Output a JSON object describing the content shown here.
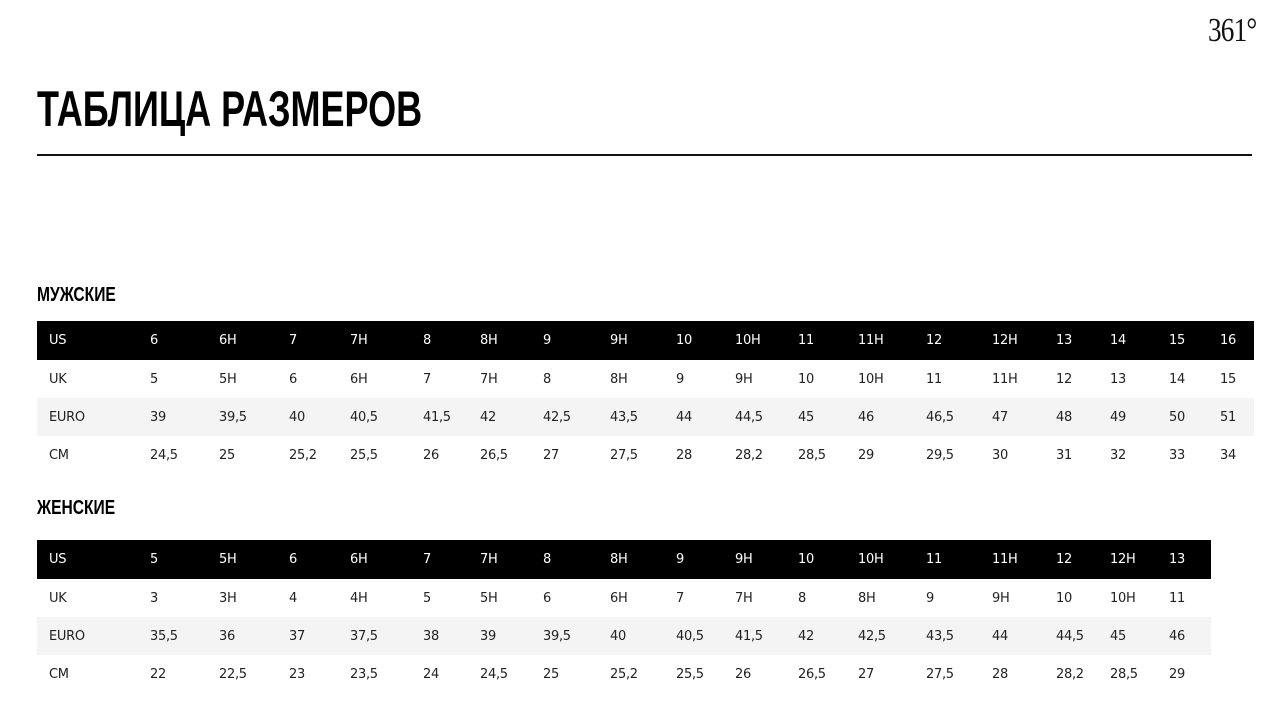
{
  "brand": {
    "logo_text": "361°"
  },
  "page_title": "ТАБЛИЦА РАЗМЕРОВ",
  "men": {
    "title": "МУЖСКИЕ",
    "rows": [
      [
        "US",
        "6",
        "6H",
        "7",
        "7H",
        "8",
        "8H",
        "9",
        "9H",
        "10",
        "10H",
        "11",
        "11H",
        "12",
        "12H",
        "13",
        "14",
        "15",
        "16"
      ],
      [
        "UK",
        "5",
        "5H",
        "6",
        "6H",
        "7",
        "7H",
        "8",
        "8H",
        "9",
        "9H",
        "10",
        "10H",
        "11",
        "11H",
        "12",
        "13",
        "14",
        "15"
      ],
      [
        "EURO",
        "39",
        "39,5",
        "40",
        "40,5",
        "41,5",
        "42",
        "42,5",
        "43,5",
        "44",
        "44,5",
        "45",
        "46",
        "46,5",
        "47",
        "48",
        "49",
        "50",
        "51"
      ],
      [
        "CM",
        "24,5",
        "25",
        "25,2",
        "25,5",
        "26",
        "26,5",
        "27",
        "27,5",
        "28",
        "28,2",
        "28,5",
        "29",
        "29,5",
        "30",
        "31",
        "32",
        "33",
        "34"
      ]
    ]
  },
  "women": {
    "title": "ЖЕНСКИЕ",
    "rows": [
      [
        "US",
        "5",
        "5H",
        "6",
        "6H",
        "7",
        "7H",
        "8",
        "8H",
        "9",
        "9H",
        "10",
        "10H",
        "11",
        "11H",
        "12",
        "12H",
        "13"
      ],
      [
        "UK",
        "3",
        "3H",
        "4",
        "4H",
        "5",
        "5H",
        "6",
        "6H",
        "7",
        "7H",
        "8",
        "8H",
        "9",
        "9H",
        "10",
        "10H",
        "11"
      ],
      [
        "EURO",
        "35,5",
        "36",
        "37",
        "37,5",
        "38",
        "39",
        "39,5",
        "40",
        "40,5",
        "41,5",
        "42",
        "42,5",
        "43,5",
        "44",
        "44,5",
        "45",
        "46"
      ],
      [
        "CM",
        "22",
        "22,5",
        "23",
        "23,5",
        "24",
        "24,5",
        "25",
        "25,2",
        "25,5",
        "26",
        "26,5",
        "27",
        "27,5",
        "28",
        "28,2",
        "28,5",
        "29"
      ]
    ]
  },
  "colors": {
    "header_bg": "#000000",
    "alt_row_bg": "#f4f4f4"
  }
}
